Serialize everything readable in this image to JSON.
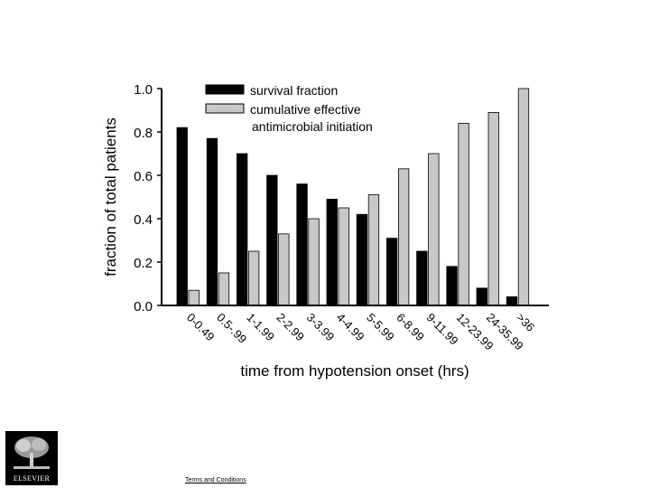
{
  "chart_data": {
    "type": "bar",
    "xlabel": "time from hypotension onset (hrs)",
    "ylabel": "fraction of total patients",
    "ylim": [
      0,
      1.0
    ],
    "yticks": [
      "0.0",
      "0.2",
      "0.4",
      "0.6",
      "0.8",
      "1.0"
    ],
    "categories": [
      "0-0.49",
      "0.5-.99",
      "1-1.99",
      "2-2.99",
      "3-3.99",
      "4-4.99",
      "5-5.99",
      "6-8.99",
      "9-11.99",
      "12-23.99",
      "24-35.99",
      ">36"
    ],
    "series": [
      {
        "name": "survival fraction",
        "color": "#000000",
        "values": [
          0.82,
          0.77,
          0.7,
          0.6,
          0.56,
          0.49,
          0.42,
          0.31,
          0.25,
          0.18,
          0.08,
          0.04
        ]
      },
      {
        "name": "cumulative effective antimicrobial initiation",
        "color": "#c8c8c8",
        "values": [
          0.07,
          0.15,
          0.25,
          0.33,
          0.4,
          0.45,
          0.51,
          0.63,
          0.7,
          0.84,
          0.89,
          1.0
        ]
      }
    ],
    "legend": {
      "position": "top-center",
      "lines": [
        "survival fraction",
        "cumulative effective",
        "antimicrobial initiation"
      ]
    },
    "grid": false
  },
  "footer": {
    "logo_text": "ELSEVIER",
    "terms_link": "Terms and Conditions"
  }
}
